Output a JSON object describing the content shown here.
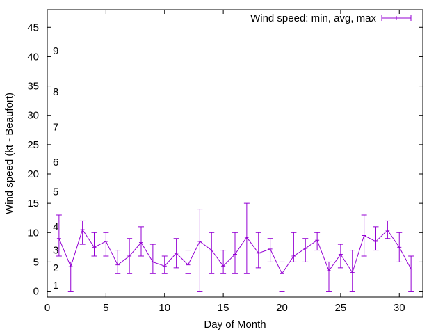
{
  "chart_data": {
    "type": "line",
    "title": "",
    "xlabel": "Day of Month",
    "ylabel": "Wind speed (kt - Beaufort)",
    "xlim": [
      0,
      32
    ],
    "ylim": [
      -1,
      48
    ],
    "xticks": [
      0,
      5,
      10,
      15,
      20,
      25,
      30
    ],
    "yticks": [
      0,
      5,
      10,
      15,
      20,
      25,
      30,
      35,
      40,
      45
    ],
    "grid": false,
    "legend_position": "top-right",
    "line_color": "#9400d3",
    "series": [
      {
        "name": "Wind speed: min, avg, max",
        "x": [
          1,
          2,
          3,
          4,
          5,
          6,
          7,
          8,
          9,
          10,
          11,
          12,
          13,
          14,
          15,
          16,
          17,
          18,
          19,
          20,
          21,
          22,
          23,
          24,
          25,
          26,
          27,
          28,
          29,
          30,
          31
        ],
        "avg": [
          9,
          4.2,
          10.5,
          7.5,
          8.5,
          4.5,
          6,
          8.3,
          5,
          4.3,
          6.5,
          4.5,
          8.5,
          7,
          4.3,
          6.3,
          9.2,
          6.5,
          7.2,
          3,
          6,
          7.3,
          8.7,
          3.5,
          6.3,
          3.2,
          9.5,
          8.5,
          10.4,
          7.5,
          3.8
        ],
        "min": [
          6,
          0,
          8,
          6,
          6,
          3,
          3,
          6,
          3,
          3,
          4,
          3,
          0,
          3,
          3,
          3,
          3,
          4,
          5,
          0,
          5,
          5,
          7,
          0,
          4,
          0,
          6,
          7,
          9,
          5,
          0
        ],
        "max": [
          13,
          5,
          12,
          10,
          10,
          7,
          9,
          11,
          8,
          6,
          9,
          7,
          14,
          10,
          7,
          10,
          15,
          10,
          9,
          5,
          10,
          9,
          10,
          5,
          8,
          7,
          13,
          11,
          12,
          10,
          6
        ]
      }
    ],
    "beaufort_scale": [
      {
        "label": "1",
        "y": 1
      },
      {
        "label": "2",
        "y": 4
      },
      {
        "label": "3",
        "y": 7
      },
      {
        "label": "4",
        "y": 11
      },
      {
        "label": "5",
        "y": 17
      },
      {
        "label": "6",
        "y": 22
      },
      {
        "label": "7",
        "y": 28
      },
      {
        "label": "8",
        "y": 34
      },
      {
        "label": "9",
        "y": 41
      }
    ]
  }
}
